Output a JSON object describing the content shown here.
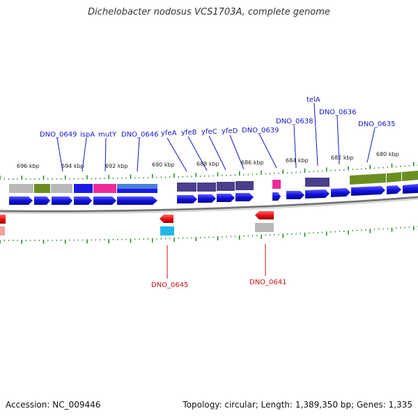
{
  "title": "Dichelobacter nodosus VCS1703A, complete genome",
  "accession_text": "Accession: NC_009446",
  "summary_text": "Topology: circular; Length: 1,389,350 bp; Genes: 1,335",
  "colors": {
    "forward_gene": "#1010e0",
    "reverse_gene": "#ee1111",
    "label_forward": "#1515c8",
    "label_reverse": "#cc1111",
    "tick": "#2a8a2a",
    "backbone": "#777777",
    "cog_grey": "#b8b8b8",
    "cog_olive": "#6b8e23",
    "cog_blue": "#1a1ae6",
    "cog_magenta": "#ee2a9a",
    "cog_steel": "#4a7fd8",
    "cog_purple": "#4a3f8a",
    "cog_cyan": "#22b8e8",
    "cog_pink": "#f4a0a0"
  },
  "kbp_labels": [
    "696 kbp",
    "694 kbp",
    "692 kbp",
    "690 kbp",
    "688 kbp",
    "686 kbp",
    "684 kbp",
    "682 kbp",
    "680 kbp"
  ],
  "forward_labels": [
    "DNO_0649",
    "ispA",
    "mutY",
    "DNO_0646",
    "yfeA",
    "yfeB",
    "yfeC",
    "yfeD",
    "DNO_0639",
    "DNO_0638",
    "telA",
    "DNO_0636",
    "DNO_0635"
  ],
  "reverse_labels": [
    "DNO_0645",
    "DNO_0641"
  ]
}
